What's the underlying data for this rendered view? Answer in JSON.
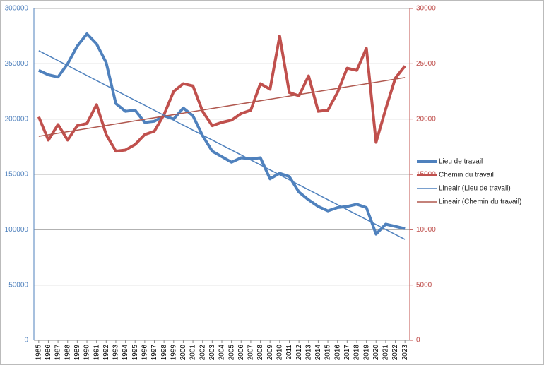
{
  "chart_data": {
    "type": "line",
    "categories": [
      "1985",
      "1986",
      "1987",
      "1988",
      "1989",
      "1990",
      "1991",
      "1992",
      "1993",
      "1994",
      "1995",
      "1996",
      "1997",
      "1998",
      "1999",
      "2000",
      "2001",
      "2002",
      "2003",
      "2004",
      "2005",
      "2006",
      "2007",
      "2008",
      "2009",
      "2010",
      "2011",
      "2012",
      "2013",
      "2014",
      "2015",
      "2016",
      "2017",
      "2018",
      "2019",
      "2020",
      "2021",
      "2022",
      "2023"
    ],
    "series": [
      {
        "name": "Lieu de travail",
        "color": "#4f81bd",
        "values": [
          244000,
          240000,
          238000,
          250000,
          266000,
          277000,
          268000,
          251000,
          214000,
          207000,
          208000,
          197000,
          198000,
          203000,
          200000,
          210000,
          203000,
          185000,
          171000,
          166000,
          161000,
          165000,
          164000,
          165000,
          146000,
          151000,
          148000,
          134000,
          127000,
          121000,
          117000,
          120000,
          121000,
          123000,
          120000,
          96000,
          105000,
          103000,
          101000
        ]
      },
      {
        "name": "Chemin du travail",
        "color": "#c0504d",
        "axis": "y2",
        "values": [
          20200,
          18100,
          19500,
          18100,
          19400,
          19600,
          21300,
          18600,
          17100,
          17200,
          17700,
          18600,
          18900,
          20400,
          22500,
          23200,
          23000,
          20700,
          19400,
          19700,
          19900,
          20500,
          20800,
          23200,
          22700,
          27500,
          22400,
          22100,
          23900,
          20700,
          20800,
          22400,
          24600,
          24400,
          26400,
          17900,
          20900,
          23700,
          24800
        ]
      },
      {
        "name": "Lineair (Lieu de travail)",
        "color": "#4f81bd",
        "trendline_of": 0
      },
      {
        "name": "Lineair (Chemin du travail)",
        "color": "#b0584f",
        "trendline_of": 1
      }
    ],
    "ylim": [
      0,
      300000
    ],
    "yticks": [
      0,
      50000,
      100000,
      150000,
      200000,
      250000,
      300000
    ],
    "y2lim": [
      0,
      30000
    ],
    "y2ticks": [
      0,
      5000,
      10000,
      15000,
      20000,
      25000,
      30000
    ],
    "grid": true,
    "legend": "right"
  }
}
